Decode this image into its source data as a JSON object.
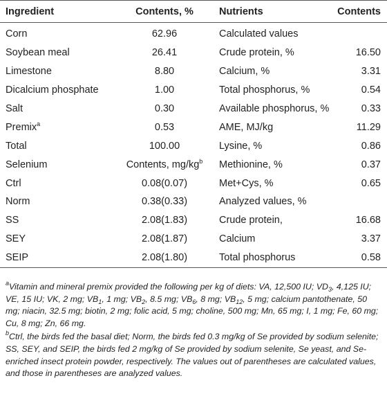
{
  "table": {
    "header": [
      "Ingredient",
      "Contents, %",
      "Nutrients",
      "Contents"
    ],
    "rows": [
      [
        "Corn",
        "62.96",
        "Calculated values",
        null
      ],
      [
        "Soybean meal",
        "26.41",
        "Crude protein, %",
        "16.50"
      ],
      [
        "Limestone",
        "8.80",
        "Calcium, %",
        "3.31"
      ],
      [
        "Dicalcium phosphate",
        "1.00",
        "Total phosphorus, %",
        "0.54"
      ],
      [
        "Salt",
        "0.30",
        "Available phosphorus, %",
        "0.33"
      ],
      [
        {
          "text": "Premix",
          "sup": "a"
        },
        "0.53",
        "AME, MJ/kg",
        "11.29"
      ],
      [
        "Total",
        "100.00",
        "Lysine, %",
        "0.86"
      ],
      [
        "Selenium",
        {
          "text": "Contents, mg/kg",
          "sup": "b"
        },
        "Methionine, %",
        "0.37"
      ],
      [
        "Ctrl",
        "0.08(0.07)",
        "Met+Cys, %",
        "0.65"
      ],
      [
        "Norm",
        "0.38(0.33)",
        "Analyzed values, %",
        null
      ],
      [
        "SS",
        "2.08(1.83)",
        "Crude protein,",
        "16.68"
      ],
      [
        "SEY",
        "2.08(1.87)",
        "Calcium",
        "3.37"
      ],
      [
        "SEIP",
        "2.08(1.80)",
        "Total phosphorus",
        "0.58"
      ]
    ]
  },
  "footnotes": [
    {
      "marker": "a",
      "segments": [
        {
          "text": "Vitamin and mineral premix provided the following per kg of diets: VA, 12,500 IU; VD"
        },
        {
          "sub": "3"
        },
        {
          "text": ", 4,125 IU; VE, 15 IU; VK, 2 mg; VB"
        },
        {
          "sub": "1"
        },
        {
          "text": ", 1 mg; VB"
        },
        {
          "sub": "2"
        },
        {
          "text": ", 8.5 mg; VB"
        },
        {
          "sub": "6"
        },
        {
          "text": ", 8 mg; VB"
        },
        {
          "sub": "12"
        },
        {
          "text": ", 5 mg; calcium pantothenate, 50 mg; niacin, 32.5 mg; biotin, 2 mg; folic acid, 5 mg; choline, 500 mg; Mn, 65 mg; I, 1 mg; Fe, 60 mg; Cu, 8 mg; Zn, 66 mg."
        }
      ]
    },
    {
      "marker": "b",
      "segments": [
        {
          "text": "Ctrl, the birds fed the basal diet; Norm, the birds fed 0.3 mg/kg of Se provided by sodium selenite; SS, SEY, and SEIP, the birds fed 2 mg/kg of Se provided by sodium selenite, Se yeast, and Se-enriched insect protein powder, respectively. The values out of parentheses are calculated values, and those in parentheses are analyzed values."
        }
      ]
    }
  ]
}
